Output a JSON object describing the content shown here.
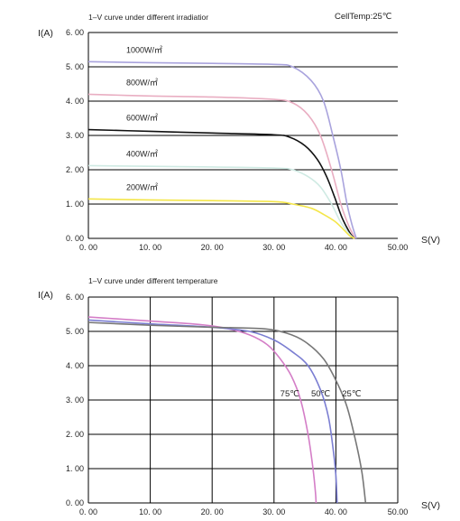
{
  "chart_data": [
    {
      "type": "line",
      "title": "1–V curve under different irradiatior",
      "annotation": "CellTemp:25℃",
      "ylabel": "I(A)",
      "xlabel": "S(V)",
      "xlim": [
        0,
        50
      ],
      "ylim": [
        0,
        6
      ],
      "x_ticks": [
        "0. 00",
        "10. 00",
        "20. 00",
        "30. 00",
        "40. 00",
        "50.00"
      ],
      "y_ticks": [
        "0. 00",
        "1. 00",
        "2. 00",
        "3. 00",
        "4. 00",
        "5. 00",
        "6. 00"
      ],
      "grid": "horizontal",
      "series": [
        {
          "name": "1000W/㎡",
          "color": "#a9a3dd",
          "points": [
            [
              0,
              5.15
            ],
            [
              10,
              5.12
            ],
            [
              20,
              5.1
            ],
            [
              30,
              5.07
            ],
            [
              33,
              5.0
            ],
            [
              36,
              4.6
            ],
            [
              38,
              4.0
            ],
            [
              39.5,
              3.0
            ],
            [
              40.8,
              2.0
            ],
            [
              41.8,
              1.0
            ],
            [
              42.6,
              0.4
            ],
            [
              43.3,
              0
            ]
          ]
        },
        {
          "name": "800W/㎡",
          "color": "#e9aec2",
          "points": [
            [
              0,
              4.2
            ],
            [
              10,
              4.15
            ],
            [
              20,
              4.12
            ],
            [
              30,
              4.05
            ],
            [
              33,
              3.95
            ],
            [
              35.5,
              3.6
            ],
            [
              37.5,
              3.0
            ],
            [
              39.3,
              2.0
            ],
            [
              40.8,
              1.0
            ],
            [
              42,
              0.4
            ],
            [
              43.1,
              0
            ]
          ]
        },
        {
          "name": "600W/㎡",
          "color": "#111111",
          "points": [
            [
              0,
              3.17
            ],
            [
              10,
              3.12
            ],
            [
              20,
              3.07
            ],
            [
              30,
              3.02
            ],
            [
              32.5,
              2.95
            ],
            [
              35,
              2.7
            ],
            [
              37,
              2.3
            ],
            [
              38.5,
              1.8
            ],
            [
              39.8,
              1.2
            ],
            [
              41,
              0.6
            ],
            [
              42.3,
              0.15
            ],
            [
              43,
              0
            ]
          ]
        },
        {
          "name": "400W/㎡",
          "color": "#cfeae3",
          "points": [
            [
              0,
              2.12
            ],
            [
              10,
              2.1
            ],
            [
              20,
              2.08
            ],
            [
              30,
              2.05
            ],
            [
              33,
              2.0
            ],
            [
              35.5,
              1.8
            ],
            [
              37.5,
              1.5
            ],
            [
              39.3,
              1.0
            ],
            [
              40.7,
              0.5
            ],
            [
              42.2,
              0.12
            ],
            [
              43,
              0
            ]
          ]
        },
        {
          "name": "200W/㎡",
          "color": "#f4e64a",
          "points": [
            [
              0,
              1.15
            ],
            [
              10,
              1.12
            ],
            [
              20,
              1.1
            ],
            [
              30,
              1.07
            ],
            [
              33,
              1.0
            ],
            [
              36,
              0.88
            ],
            [
              38,
              0.7
            ],
            [
              39.8,
              0.5
            ],
            [
              41,
              0.3
            ],
            [
              42.2,
              0.08
            ],
            [
              43,
              0
            ]
          ]
        }
      ]
    },
    {
      "type": "line",
      "title": "1–V curve under different temperature",
      "ylabel": "I(A)",
      "xlabel": "S(V)",
      "xlim": [
        0,
        50
      ],
      "ylim": [
        0,
        6
      ],
      "x_ticks": [
        "0. 00",
        "10. 00",
        "20. 00",
        "30. 00",
        "40. 00",
        "50.00"
      ],
      "y_ticks": [
        "0. 00",
        "1. 00",
        "2. 00",
        "3. 00",
        "4. 00",
        "5. 00",
        "6. 00"
      ],
      "grid": "both",
      "series_labels": [
        "75℃",
        "50℃",
        "25℃"
      ],
      "series": [
        {
          "name": "75℃",
          "color": "#d47ec7",
          "points": [
            [
              0,
              5.42
            ],
            [
              10,
              5.3
            ],
            [
              18,
              5.2
            ],
            [
              22,
              5.1
            ],
            [
              26,
              4.9
            ],
            [
              29,
              4.6
            ],
            [
              31,
              4.2
            ],
            [
              32.8,
              3.7
            ],
            [
              34.3,
              3.0
            ],
            [
              35.5,
              2.0
            ],
            [
              36.3,
              1.0
            ],
            [
              36.7,
              0.3
            ],
            [
              36.8,
              0
            ]
          ]
        },
        {
          "name": "50℃",
          "color": "#7b7ed2",
          "points": [
            [
              0,
              5.33
            ],
            [
              10,
              5.22
            ],
            [
              20,
              5.12
            ],
            [
              26,
              5.0
            ],
            [
              30,
              4.75
            ],
            [
              33,
              4.4
            ],
            [
              35.5,
              4.0
            ],
            [
              37.5,
              3.3
            ],
            [
              38.8,
              2.5
            ],
            [
              39.6,
              1.5
            ],
            [
              40,
              0.8
            ],
            [
              40.2,
              0
            ]
          ]
        },
        {
          "name": "25℃",
          "color": "#777777",
          "points": [
            [
              0,
              5.26
            ],
            [
              10,
              5.18
            ],
            [
              20,
              5.12
            ],
            [
              28,
              5.08
            ],
            [
              32,
              4.95
            ],
            [
              35,
              4.7
            ],
            [
              38,
              4.2
            ],
            [
              40.2,
              3.5
            ],
            [
              41.8,
              2.8
            ],
            [
              43.2,
              1.8
            ],
            [
              44.2,
              0.9
            ],
            [
              44.8,
              0
            ]
          ]
        }
      ]
    }
  ],
  "series_label_positions_hint": "inline-right"
}
